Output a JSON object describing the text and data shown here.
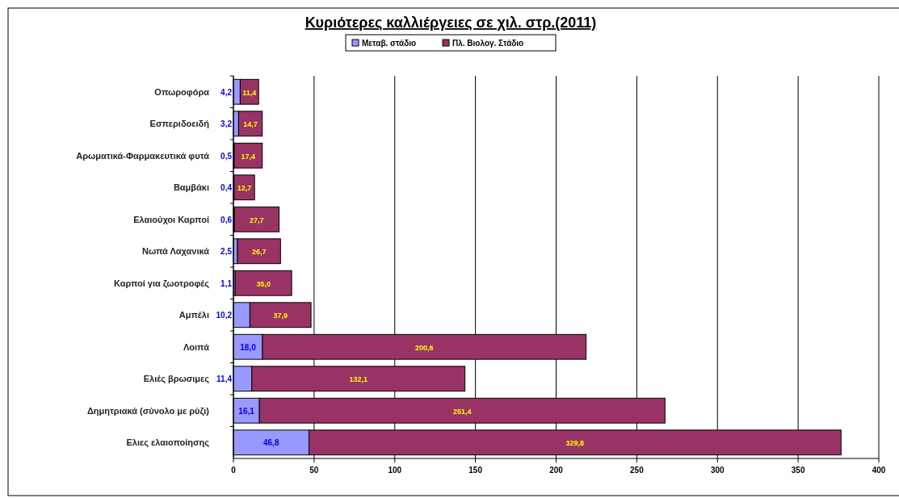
{
  "chart_data": {
    "type": "bar",
    "orientation": "horizontal",
    "stacked": true,
    "title": "Κυριότερες καλλιέργειες σε χιλ. στρ.(2011)",
    "categories": [
      "Οπωροφόρα",
      "Εσπεριδοειδή",
      "Αρωματικά-Φαρμακευτικά φυτά",
      "Βαμβάκι",
      "Ελαιούχοι Καρποί",
      "Νωπά Λαχανικά",
      "Καρποί για ζωοτροφές",
      "Αμπέλι",
      "Λοιπά",
      "Ελιές βρωσιμες",
      "Δημητριακά (σύνολο με ρύζι)",
      "Ελιες ελαιοποίησης"
    ],
    "series": [
      {
        "name": "Μεταβ. στάδιο",
        "color": "#9999ff",
        "values": [
          4.2,
          3.2,
          0.5,
          0.4,
          0.6,
          2.5,
          1.1,
          10.2,
          18.0,
          11.4,
          16.1,
          46.8
        ],
        "value_labels": [
          "4,2",
          "3,2",
          "0,5",
          "0,4",
          "0,6",
          "2,5",
          "1,1",
          "10,2",
          "18,0",
          "11,4",
          "16,1",
          "46,8"
        ]
      },
      {
        "name": "Πλ. Βιολογ. Στάδιο",
        "color": "#993366",
        "values": [
          11.4,
          14.7,
          17.4,
          12.7,
          27.7,
          26.7,
          35.0,
          37.9,
          200.6,
          132.1,
          251.4,
          329.8
        ],
        "value_labels": [
          "11,4",
          "14,7",
          "17,4",
          "12,7",
          "27,7",
          "26,7",
          "35,0",
          "37,9",
          "200,6",
          "132,1",
          "251,4",
          "329,8"
        ]
      }
    ],
    "xlim": [
      0,
      400
    ],
    "xticks": [
      0,
      50,
      100,
      150,
      200,
      250,
      300,
      350,
      400
    ],
    "grid": "x",
    "legend": "top"
  }
}
